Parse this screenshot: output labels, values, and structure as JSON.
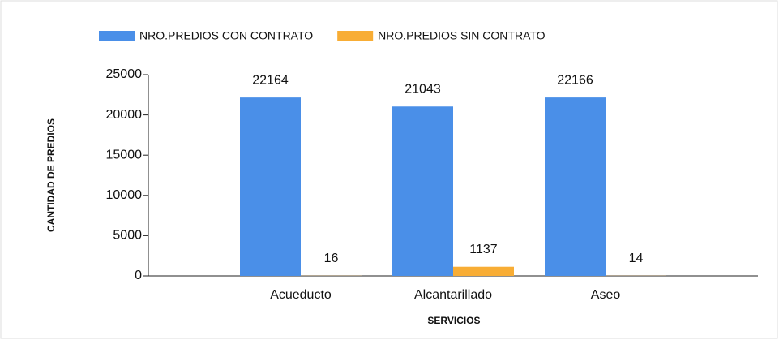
{
  "chart_data": {
    "type": "bar",
    "categories": [
      "Acueducto",
      "Alcantarillado",
      "Aseo"
    ],
    "series": [
      {
        "name": "NRO.PREDIOS CON CONTRATO",
        "color": "#4a8fe8",
        "values": [
          22164,
          21043,
          22166
        ]
      },
      {
        "name": "NRO.PREDIOS SIN CONTRATO",
        "color": "#f8ad35",
        "values": [
          16,
          1137,
          14
        ]
      }
    ],
    "ylim": [
      0,
      25000
    ],
    "yticks": [
      0,
      5000,
      10000,
      15000,
      20000,
      25000
    ],
    "y_label": "CANTIDAD DE PREDIOS",
    "x_label": "SERVICIOS",
    "legend": "top"
  }
}
